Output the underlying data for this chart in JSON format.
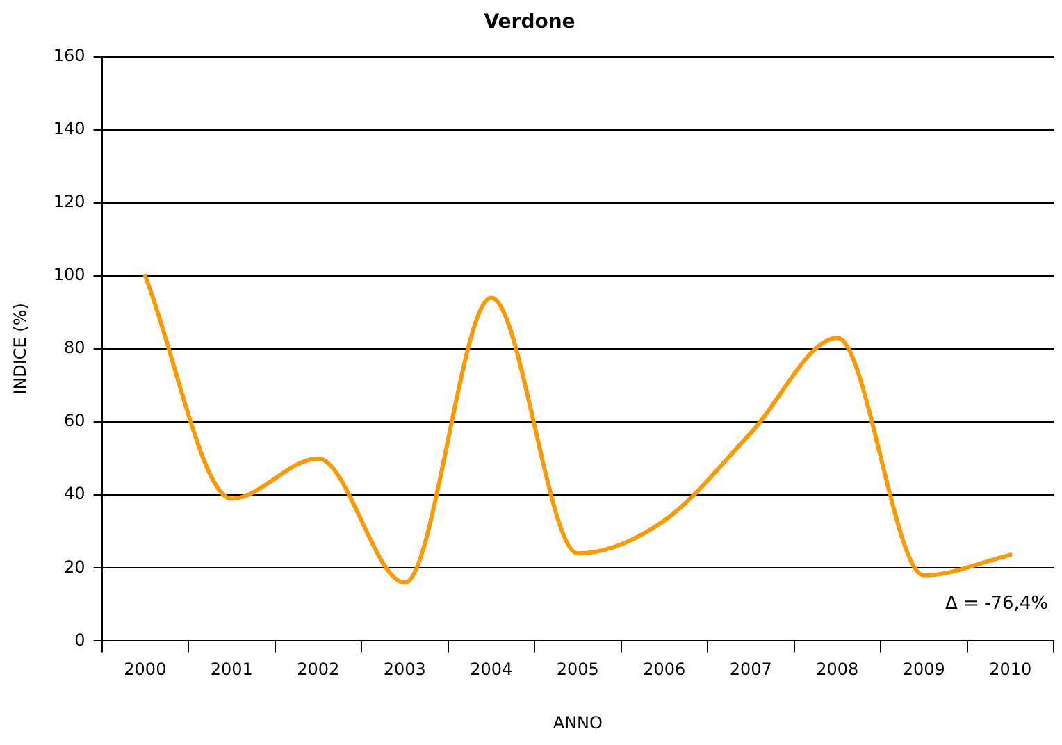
{
  "chart_data": {
    "type": "line",
    "title": "Verdone",
    "xlabel": "ANNO",
    "ylabel": "INDICE (%)",
    "categories": [
      "2000",
      "2001",
      "2002",
      "2003",
      "2004",
      "2005",
      "2006",
      "2007",
      "2008",
      "2009",
      "2010"
    ],
    "series": [
      {
        "color": "#ff9900",
        "values": [
          100,
          39,
          50,
          16,
          94,
          24,
          33,
          57,
          83,
          18,
          23.6
        ]
      }
    ],
    "ylim": [
      0,
      160
    ],
    "yticks": [
      0,
      20,
      40,
      60,
      80,
      100,
      120,
      140,
      160
    ],
    "grid": "y",
    "legend": false,
    "marker": "none",
    "line_style": "solid",
    "annotations": [
      "Δ = -76,4%"
    ]
  }
}
